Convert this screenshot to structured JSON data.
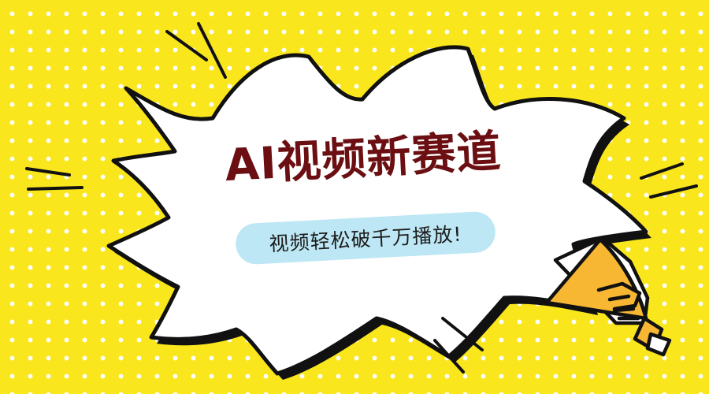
{
  "banner": {
    "title": "AI视频新赛道",
    "subtitle": "视频轻松破千万播放!"
  },
  "colors": {
    "background": "#fae61d",
    "dots": "#ffffff",
    "bubble_fill": "#ffffff",
    "bubble_stroke": "#111111",
    "title_text": "#6b0f12",
    "subtitle_pill": "#bde7f4",
    "megaphone_body": "#f7b733"
  },
  "icons": {
    "speech_bubble": "burst-bubble-icon",
    "megaphone": "megaphone-icon",
    "emphasis_lines": "action-lines-icon"
  }
}
